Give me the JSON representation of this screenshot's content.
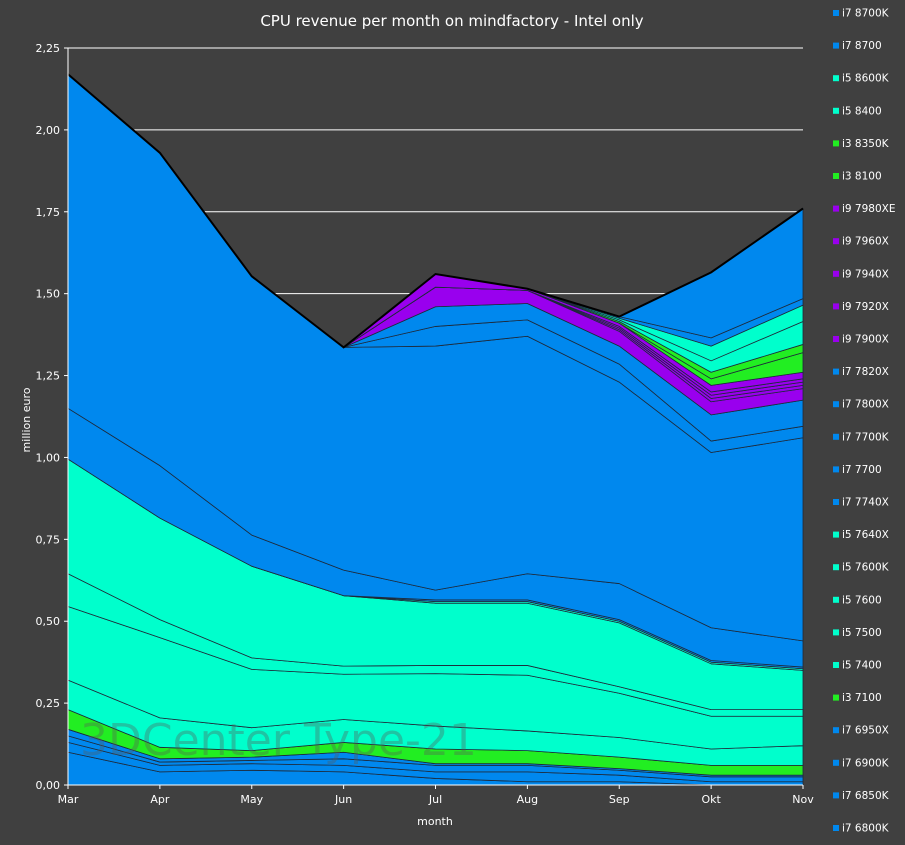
{
  "chart_data": {
    "type": "area",
    "stacked": true,
    "title": "CPU revenue per month on mindfactory - Intel only",
    "xlabel": "month",
    "ylabel": "million euro",
    "categories": [
      "Mar",
      "Apr",
      "May",
      "Jun",
      "Jul",
      "Aug",
      "Sep",
      "Okt",
      "Nov"
    ],
    "ylim": [
      0,
      2.25
    ],
    "yticks": [
      0,
      0.25,
      0.5,
      0.75,
      1.0,
      1.25,
      1.5,
      1.75,
      2.0,
      2.25
    ],
    "ytick_labels": [
      "0,00",
      "0,25",
      "0,50",
      "0,75",
      "1,00",
      "1,25",
      "1,50",
      "1,75",
      "2,00",
      "2,25"
    ],
    "grid": true,
    "legend_position": "right",
    "watermark": "3DCenter  Type-21",
    "series": [
      {
        "name": "i7 6800K",
        "color": "#0088ee",
        "values": [
          0.1,
          0.04,
          0.045,
          0.04,
          0.02,
          0.01,
          0.01,
          0.0,
          0.0
        ]
      },
      {
        "name": "i7 6850K",
        "color": "#0088ee",
        "values": [
          0.03,
          0.02,
          0.02,
          0.02,
          0.02,
          0.03,
          0.02,
          0.01,
          0.01
        ]
      },
      {
        "name": "i7 6900K",
        "color": "#0088ee",
        "values": [
          0.02,
          0.01,
          0.01,
          0.02,
          0.02,
          0.02,
          0.015,
          0.015,
          0.015
        ]
      },
      {
        "name": "i7 6950X",
        "color": "#0088ee",
        "values": [
          0.02,
          0.01,
          0.01,
          0.02,
          0.005,
          0.005,
          0.005,
          0.005,
          0.005
        ]
      },
      {
        "name": "i3 7100",
        "color": "#22ee22",
        "values": [
          0.06,
          0.035,
          0.02,
          0.03,
          0.045,
          0.04,
          0.035,
          0.03,
          0.03
        ]
      },
      {
        "name": "i5 7400",
        "color": "#00ffcc",
        "values": [
          0.09,
          0.09,
          0.07,
          0.07,
          0.07,
          0.06,
          0.06,
          0.05,
          0.06
        ]
      },
      {
        "name": "i5 7500",
        "color": "#00ffcc",
        "values": [
          0.225,
          0.245,
          0.178,
          0.138,
          0.16,
          0.17,
          0.135,
          0.1,
          0.09
        ]
      },
      {
        "name": "i5 7600",
        "color": "#00ffcc",
        "values": [
          0.1,
          0.055,
          0.035,
          0.025,
          0.025,
          0.03,
          0.02,
          0.02,
          0.02
        ]
      },
      {
        "name": "i5 7600K",
        "color": "#00ffcc",
        "values": [
          0.35,
          0.31,
          0.28,
          0.215,
          0.19,
          0.19,
          0.195,
          0.14,
          0.12
        ]
      },
      {
        "name": "i5 7640X",
        "color": "#00ffcc",
        "values": [
          0.0,
          0.0,
          0.0,
          0.0,
          0.005,
          0.005,
          0.005,
          0.005,
          0.005
        ]
      },
      {
        "name": "i7 7740X",
        "color": "#0088ee",
        "values": [
          0.0,
          0.0,
          0.0,
          0.0,
          0.005,
          0.005,
          0.005,
          0.005,
          0.005
        ]
      },
      {
        "name": "i7 7700",
        "color": "#0088ee",
        "values": [
          0.155,
          0.16,
          0.095,
          0.078,
          0.03,
          0.08,
          0.11,
          0.1,
          0.08
        ]
      },
      {
        "name": "i7 7700K",
        "color": "#0088ee",
        "values": [
          1.02,
          0.955,
          0.79,
          0.68,
          0.745,
          0.725,
          0.615,
          0.535,
          0.62
        ]
      },
      {
        "name": "i7 7800X",
        "color": "#0088ee",
        "values": [
          0.0,
          0.0,
          0.0,
          0.0,
          0.06,
          0.05,
          0.055,
          0.035,
          0.035
        ]
      },
      {
        "name": "i7 7820X",
        "color": "#0088ee",
        "values": [
          0.0,
          0.0,
          0.0,
          0.0,
          0.06,
          0.05,
          0.055,
          0.08,
          0.08
        ]
      },
      {
        "name": "i9 7900X",
        "color": "#9900ee",
        "values": [
          0.0,
          0.0,
          0.0,
          0.0,
          0.06,
          0.04,
          0.045,
          0.04,
          0.035
        ]
      },
      {
        "name": "i9 7920X",
        "color": "#9900ee",
        "values": [
          0.0,
          0.0,
          0.0,
          0.0,
          0.0,
          0.0,
          0.005,
          0.01,
          0.01
        ]
      },
      {
        "name": "i9 7940X",
        "color": "#9900ee",
        "values": [
          0.0,
          0.0,
          0.0,
          0.0,
          0.0,
          0.0,
          0.005,
          0.01,
          0.01
        ]
      },
      {
        "name": "i9 7960X",
        "color": "#9900ee",
        "values": [
          0.0,
          0.0,
          0.0,
          0.0,
          0.0,
          0.0,
          0.005,
          0.01,
          0.01
        ]
      },
      {
        "name": "i9 7980XE",
        "color": "#9900ee",
        "values": [
          0.0,
          0.0,
          0.0,
          0.0,
          0.04,
          0.005,
          0.01,
          0.02,
          0.02
        ]
      },
      {
        "name": "i3 8100",
        "color": "#22ee22",
        "values": [
          0.0,
          0.0,
          0.0,
          0.0,
          0.0,
          0.0,
          0.0,
          0.02,
          0.06
        ]
      },
      {
        "name": "i3 8350K",
        "color": "#22ee22",
        "values": [
          0.0,
          0.0,
          0.0,
          0.0,
          0.0,
          0.0,
          0.005,
          0.02,
          0.025
        ]
      },
      {
        "name": "i5 8400",
        "color": "#00ffcc",
        "values": [
          0.0,
          0.0,
          0.0,
          0.0,
          0.0,
          0.0,
          0.005,
          0.035,
          0.07
        ]
      },
      {
        "name": "i5 8600K",
        "color": "#00ffcc",
        "values": [
          0.0,
          0.0,
          0.0,
          0.0,
          0.0,
          0.0,
          0.005,
          0.045,
          0.05
        ]
      },
      {
        "name": "i7 8700",
        "color": "#0088ee",
        "values": [
          0.0,
          0.0,
          0.0,
          0.0,
          0.0,
          0.0,
          0.005,
          0.025,
          0.02
        ]
      },
      {
        "name": "i7 8700K",
        "color": "#0088ee",
        "values": [
          0.0,
          0.0,
          0.0,
          0.0,
          0.0,
          0.0,
          0.0,
          0.2,
          0.275
        ]
      }
    ]
  }
}
